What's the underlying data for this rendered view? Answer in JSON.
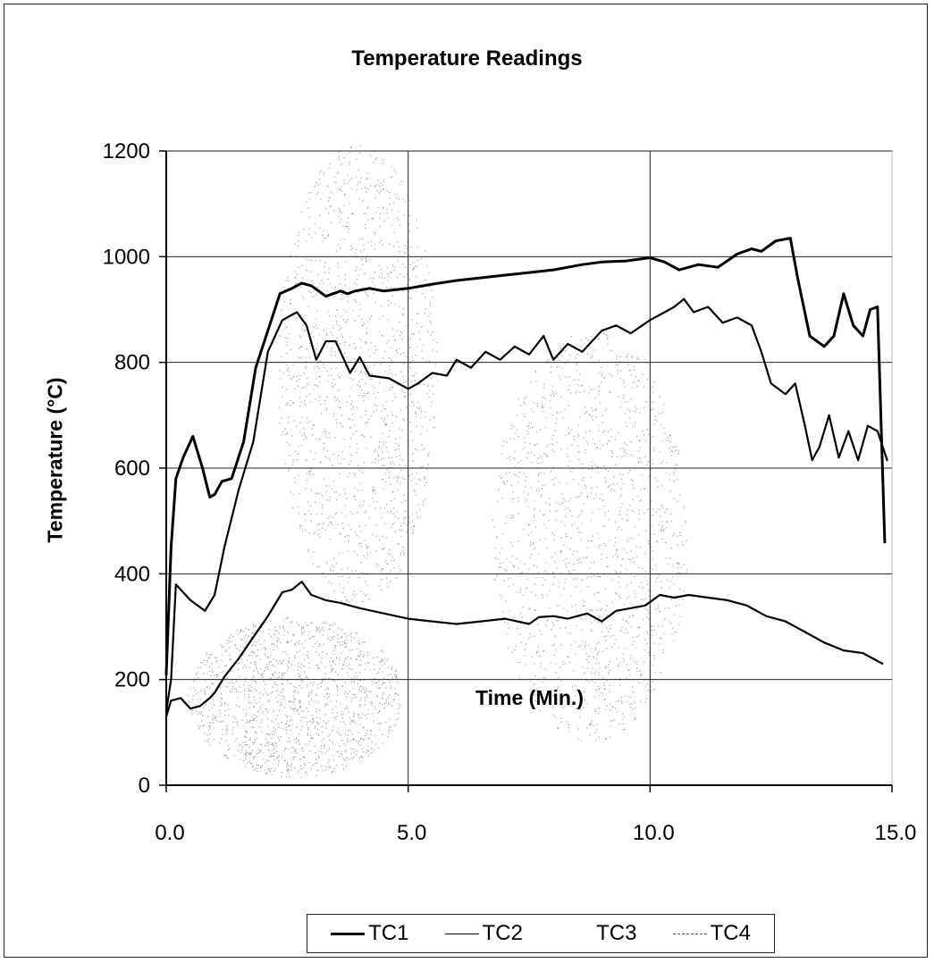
{
  "chart_data": {
    "type": "line",
    "title": "Temperature Readings",
    "xlabel": "Time (Min.)",
    "ylabel": "Temperature (°C)",
    "xlim": [
      0,
      15
    ],
    "ylim": [
      0,
      1200
    ],
    "xticks": [
      "0.0",
      "5.0",
      "10.0",
      "15.0"
    ],
    "yticks": [
      "0",
      "200",
      "400",
      "600",
      "800",
      "1000",
      "1200"
    ],
    "grid": true,
    "legend_position": "bottom",
    "series": [
      {
        "name": "TC1",
        "color": "#000000",
        "x": [
          0,
          0.1,
          0.2,
          0.35,
          0.55,
          0.75,
          0.9,
          1.0,
          1.15,
          1.35,
          1.6,
          1.85,
          2.1,
          2.35,
          2.6,
          2.8,
          3.0,
          3.3,
          3.6,
          3.75,
          3.9,
          4.2,
          4.5,
          5.0,
          5.5,
          6.0,
          6.5,
          7.0,
          7.5,
          8.0,
          8.3,
          8.6,
          9.0,
          9.5,
          10.0,
          10.3,
          10.6,
          11.0,
          11.4,
          11.8,
          12.1,
          12.3,
          12.6,
          12.9,
          13.05,
          13.3,
          13.45,
          13.6,
          13.8,
          14.0,
          14.2,
          14.4,
          14.55,
          14.7,
          14.85
        ],
        "values": [
          210,
          450,
          580,
          620,
          660,
          600,
          545,
          550,
          575,
          580,
          650,
          790,
          860,
          930,
          940,
          950,
          945,
          925,
          935,
          930,
          935,
          940,
          935,
          940,
          948,
          955,
          960,
          965,
          970,
          975,
          980,
          985,
          990,
          992,
          998,
          990,
          975,
          985,
          980,
          1005,
          1015,
          1010,
          1030,
          1035,
          960,
          850,
          840,
          830,
          850,
          930,
          870,
          850,
          900,
          905,
          460
        ]
      },
      {
        "name": "TC2",
        "color": "#000000",
        "x": [
          0,
          0.1,
          0.2,
          0.5,
          0.8,
          1.0,
          1.2,
          1.5,
          1.8,
          2.1,
          2.4,
          2.7,
          2.9,
          3.1,
          3.3,
          3.5,
          3.8,
          4.0,
          4.2,
          4.6,
          5.0,
          5.2,
          5.5,
          5.8,
          6.0,
          6.3,
          6.6,
          6.9,
          7.2,
          7.5,
          7.8,
          8.0,
          8.3,
          8.6,
          9.0,
          9.3,
          9.6,
          10.0,
          10.3,
          10.5,
          10.7,
          10.9,
          11.2,
          11.5,
          11.8,
          12.1,
          12.3,
          12.5,
          12.8,
          13.0,
          13.2,
          13.35,
          13.5,
          13.7,
          13.9,
          14.1,
          14.3,
          14.5,
          14.7,
          14.9
        ],
        "values": [
          140,
          200,
          380,
          350,
          330,
          360,
          450,
          560,
          650,
          820,
          880,
          895,
          870,
          805,
          840,
          840,
          780,
          810,
          775,
          770,
          750,
          760,
          780,
          775,
          805,
          790,
          820,
          805,
          830,
          815,
          850,
          805,
          835,
          820,
          860,
          870,
          855,
          880,
          895,
          905,
          920,
          895,
          905,
          875,
          885,
          870,
          820,
          760,
          740,
          760,
          680,
          615,
          640,
          700,
          620,
          670,
          615,
          680,
          670,
          615
        ]
      },
      {
        "name": "TC3",
        "color": "#000000",
        "x": [
          0,
          0.1,
          0.3,
          0.5,
          0.7,
          0.9,
          1.0,
          1.2,
          1.5,
          1.8,
          2.1,
          2.4,
          2.6,
          2.8,
          3.0,
          3.3,
          3.6,
          4.0,
          4.5,
          5.0,
          5.5,
          6.0,
          6.5,
          7.0,
          7.5,
          7.7,
          8.0,
          8.3,
          8.7,
          9.0,
          9.3,
          9.6,
          9.9,
          10.2,
          10.5,
          10.8,
          11.2,
          11.6,
          12.0,
          12.4,
          12.8,
          13.2,
          13.6,
          14.0,
          14.4,
          14.8
        ],
        "values": [
          130,
          160,
          165,
          145,
          150,
          165,
          175,
          205,
          240,
          280,
          320,
          365,
          370,
          385,
          360,
          350,
          345,
          335,
          325,
          315,
          310,
          305,
          310,
          315,
          305,
          318,
          320,
          315,
          325,
          310,
          330,
          335,
          340,
          360,
          355,
          360,
          355,
          350,
          340,
          320,
          310,
          290,
          270,
          255,
          250,
          230
        ]
      },
      {
        "name": "TC4",
        "color": "#555555",
        "x": [],
        "values": []
      }
    ]
  }
}
